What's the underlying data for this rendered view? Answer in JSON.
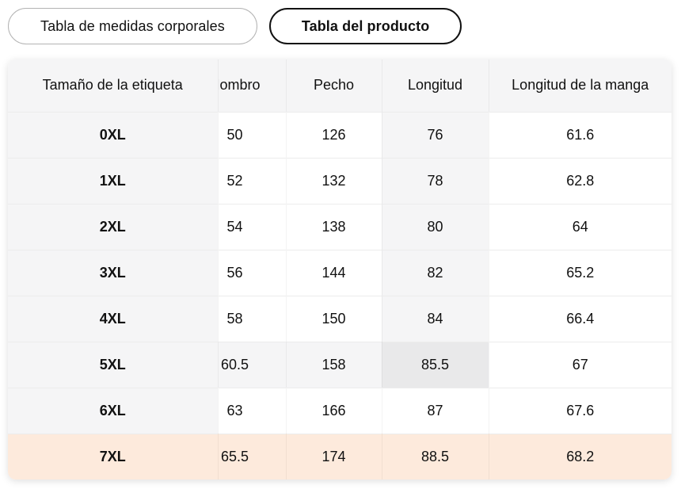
{
  "tabs": [
    {
      "label": "Tabla de medidas corporales",
      "selected": false
    },
    {
      "label": "Tabla del producto",
      "selected": true
    }
  ],
  "size_table": {
    "columns": [
      "Tamaño de la etiqueta",
      "Hombro",
      "Pecho",
      "Longitud",
      "Longitud de la manga"
    ],
    "visible_second_column_text": "ombro",
    "rows": [
      {
        "size": "0XL",
        "values": [
          "50",
          "126",
          "76",
          "61.6"
        ]
      },
      {
        "size": "1XL",
        "values": [
          "52",
          "132",
          "78",
          "62.8"
        ]
      },
      {
        "size": "2XL",
        "values": [
          "54",
          "138",
          "80",
          "64"
        ]
      },
      {
        "size": "3XL",
        "values": [
          "56",
          "144",
          "82",
          "65.2"
        ]
      },
      {
        "size": "4XL",
        "values": [
          "58",
          "150",
          "84",
          "66.4"
        ]
      },
      {
        "size": "5XL",
        "values": [
          "60.5",
          "158",
          "85.5",
          "67"
        ]
      },
      {
        "size": "6XL",
        "values": [
          "63",
          "166",
          "87",
          "67.6"
        ]
      },
      {
        "size": "7XL",
        "values": [
          "65.5",
          "174",
          "88.5",
          "68.2"
        ]
      }
    ],
    "hovered_cell": {
      "row_index": 5,
      "col_index": 3,
      "row_label": "5XL",
      "column_label": "Longitud",
      "value": "85.5"
    },
    "selected_row_index": 7,
    "selected_row_label": "7XL",
    "colors": {
      "header_bg": "#f5f5f6",
      "hover_bg": "#f5f5f6",
      "hover_cell_bg": "#e9e9ea",
      "selected_row_bg": "#fdeadc",
      "tab_active_border": "#111111",
      "tab_inactive_border": "#b3b3b3"
    }
  }
}
